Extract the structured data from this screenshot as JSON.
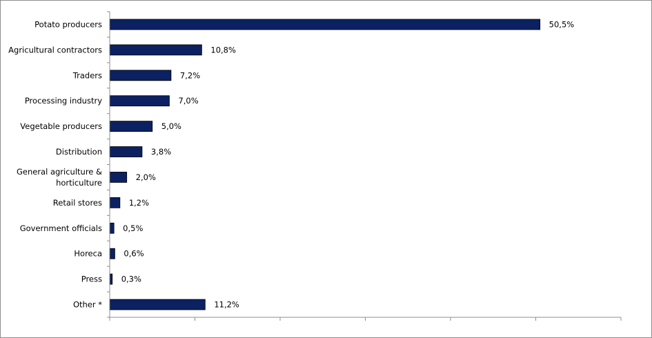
{
  "chart_data": {
    "type": "bar",
    "orientation": "horizontal",
    "categories": [
      "Potato producers",
      "Agricultural contractors",
      "Traders",
      "Processing industry",
      "Vegetable producers",
      "Distribution",
      "General agriculture & horticulture",
      "Retail stores",
      "Government officials",
      "Horeca",
      "Press",
      "Other *"
    ],
    "category_lines": [
      [
        "Potato producers"
      ],
      [
        "Agricultural contractors"
      ],
      [
        "Traders"
      ],
      [
        "Processing industry"
      ],
      [
        "Vegetable producers"
      ],
      [
        "Distribution"
      ],
      [
        "General agriculture &",
        "horticulture"
      ],
      [
        "Retail stores"
      ],
      [
        "Government officials"
      ],
      [
        "Horeca"
      ],
      [
        "Press"
      ],
      [
        "Other *"
      ]
    ],
    "values": [
      50.5,
      10.8,
      7.2,
      7.0,
      5.0,
      3.8,
      2.0,
      1.2,
      0.5,
      0.6,
      0.3,
      11.2
    ],
    "value_labels": [
      "50,5%",
      "10,8%",
      "7,2%",
      "7,0%",
      "5,0%",
      "3,8%",
      "2,0%",
      "1,2%",
      "0,5%",
      "0,6%",
      "0,3%",
      "11,2%"
    ],
    "xlim": [
      0,
      60
    ],
    "x_ticks": [
      0,
      10,
      20,
      30,
      40,
      50,
      60
    ],
    "grid": false,
    "legend": "none",
    "bar_color": "#0b2161",
    "bar_border_color": "#000000",
    "axis_color": "#8c8c8c",
    "title": "",
    "xlabel": "",
    "ylabel": ""
  }
}
